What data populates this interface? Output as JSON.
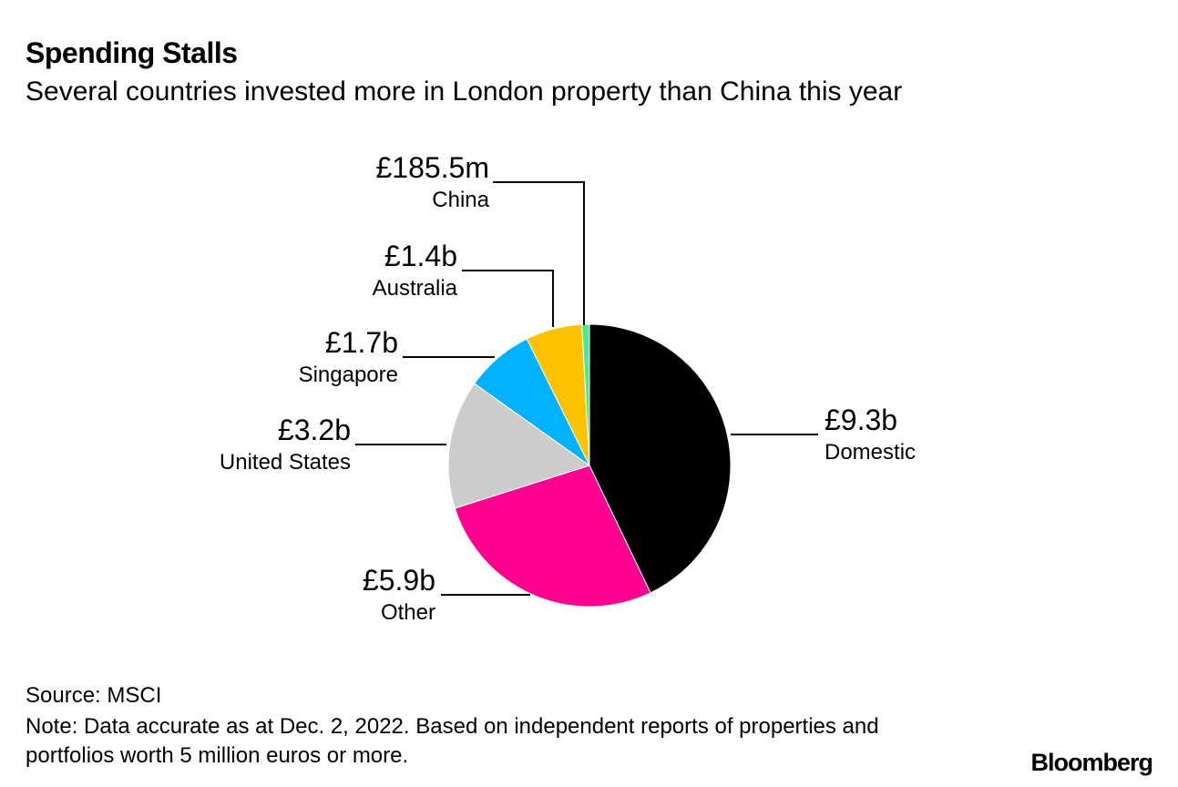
{
  "header": {
    "title": "Spending Stalls",
    "subtitle": "Several countries invested more in London property than China this year"
  },
  "footer": {
    "source": "Source: MSCI",
    "note": "Note: Data accurate as at Dec. 2, 2022. Based on independent reports of properties and portfolios worth 5 million euros or more.",
    "logo": "Bloomberg"
  },
  "chart_data": {
    "type": "pie",
    "start_angle_deg": 0,
    "direction": "clockwise",
    "slices": [
      {
        "label": "Domestic",
        "value_label": "£9.3b",
        "value": 9.3,
        "color": "#000000"
      },
      {
        "label": "Other",
        "value_label": "£5.9b",
        "value": 5.9,
        "color": "#ff0090"
      },
      {
        "label": "United States",
        "value_label": "£3.2b",
        "value": 3.2,
        "color": "#cccccc"
      },
      {
        "label": "Singapore",
        "value_label": "£1.7b",
        "value": 1.7,
        "color": "#00b2ff"
      },
      {
        "label": "Australia",
        "value_label": "£1.4b",
        "value": 1.4,
        "color": "#ffc200"
      },
      {
        "label": "China",
        "value_label": "£185.5m",
        "value": 0.1855,
        "color": "#4ce894"
      }
    ]
  }
}
